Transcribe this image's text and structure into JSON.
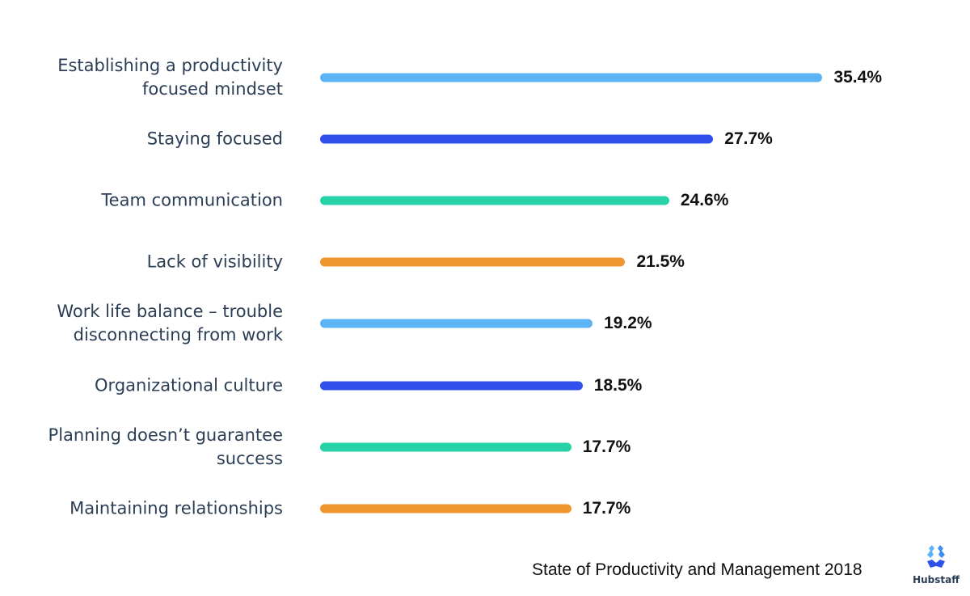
{
  "chart_data": {
    "type": "bar",
    "orientation": "horizontal",
    "categories": [
      "Establishing a productivity focused mindset",
      "Staying focused",
      "Team communication",
      "Lack of visibility",
      "Work life balance – trouble disconnecting from work",
      "Organizational culture",
      "Planning doesn’t guarantee success",
      "Maintaining relationships"
    ],
    "values": [
      35.4,
      27.7,
      24.6,
      21.5,
      19.2,
      18.5,
      17.7,
      17.7
    ],
    "value_labels": [
      "35.4%",
      "27.7%",
      "24.6%",
      "21.5%",
      "19.2%",
      "18.5%",
      "17.7%",
      "17.7%"
    ],
    "colors": [
      "#5db4f5",
      "#2f50ea",
      "#27d3a6",
      "#f0962e",
      "#5db4f5",
      "#2f50ea",
      "#27d3a6",
      "#f0962e"
    ],
    "xlim": [
      0,
      36
    ],
    "grid": false,
    "title": "",
    "xlabel": "",
    "ylabel": ""
  },
  "source": "State of Productivity and Management 2018",
  "logo": {
    "text": "Hubstaff",
    "colors": [
      "#5db4f5",
      "#2f50ea"
    ]
  }
}
